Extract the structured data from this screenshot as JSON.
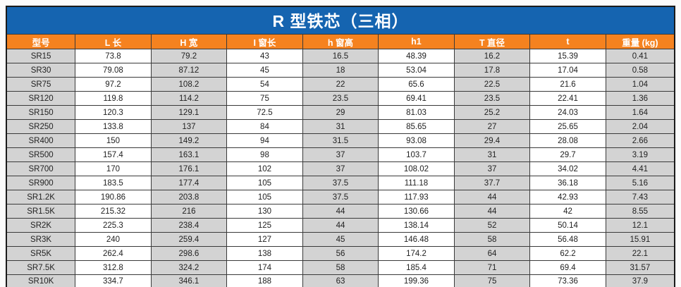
{
  "title": "R 型铁芯（三相）",
  "table": {
    "columns": [
      "型号",
      "L 长",
      "H 宽",
      "I 窗长",
      "h 窗高",
      "h1",
      "T 直径",
      "t",
      "重量 (kg)"
    ],
    "rows": [
      [
        "SR15",
        "73.8",
        "79.2",
        "43",
        "16.5",
        "48.39",
        "16.2",
        "15.39",
        "0.41"
      ],
      [
        "SR30",
        "79.08",
        "87.12",
        "45",
        "18",
        "53.04",
        "17.8",
        "17.04",
        "0.58"
      ],
      [
        "SR75",
        "97.2",
        "108.2",
        "54",
        "22",
        "65.6",
        "22.5",
        "21.6",
        "1.04"
      ],
      [
        "SR120",
        "119.8",
        "114.2",
        "75",
        "23.5",
        "69.41",
        "23.5",
        "22.41",
        "1.36"
      ],
      [
        "SR150",
        "120.3",
        "129.1",
        "72.5",
        "29",
        "81.03",
        "25.2",
        "24.03",
        "1.64"
      ],
      [
        "SR250",
        "133.8",
        "137",
        "84",
        "31",
        "85.65",
        "27",
        "25.65",
        "2.04"
      ],
      [
        "SR400",
        "150",
        "149.2",
        "94",
        "31.5",
        "93.08",
        "29.4",
        "28.08",
        "2.66"
      ],
      [
        "SR500",
        "157.4",
        "163.1",
        "98",
        "37",
        "103.7",
        "31",
        "29.7",
        "3.19"
      ],
      [
        "SR700",
        "170",
        "176.1",
        "102",
        "37",
        "108.02",
        "37",
        "34.02",
        "4.41"
      ],
      [
        "SR900",
        "183.5",
        "177.4",
        "105",
        "37.5",
        "111.18",
        "37.7",
        "36.18",
        "5.16"
      ],
      [
        "SR1.2K",
        "190.86",
        "203.8",
        "105",
        "37.5",
        "117.93",
        "44",
        "42.93",
        "7.43"
      ],
      [
        "SR1.5K",
        "215.32",
        "216",
        "130",
        "44",
        "130.66",
        "44",
        "42",
        "8.55"
      ],
      [
        "SR2K",
        "225.3",
        "238.4",
        "125",
        "44",
        "138.14",
        "52",
        "50.14",
        "12.1"
      ],
      [
        "SR3K",
        "240",
        "259.4",
        "127",
        "45",
        "146.48",
        "58",
        "56.48",
        "15.91"
      ],
      [
        "SR5K",
        "262.4",
        "298.6",
        "138",
        "56",
        "174.2",
        "64",
        "62.2",
        "22.1"
      ],
      [
        "SR7.5K",
        "312.8",
        "324.2",
        "174",
        "58",
        "185.4",
        "71",
        "69.4",
        "31.57"
      ],
      [
        "SR10K",
        "334.7",
        "346.1",
        "188",
        "63",
        "199.36",
        "75",
        "73.36",
        "37.9"
      ]
    ]
  },
  "colors": {
    "title_bg": "#1564b0",
    "header_bg": "#f5821f",
    "shade_cell": "#d3d3d3",
    "grid_line": "#3a3a3a",
    "header_text": "#ffffff",
    "cell_text": "#222222"
  }
}
